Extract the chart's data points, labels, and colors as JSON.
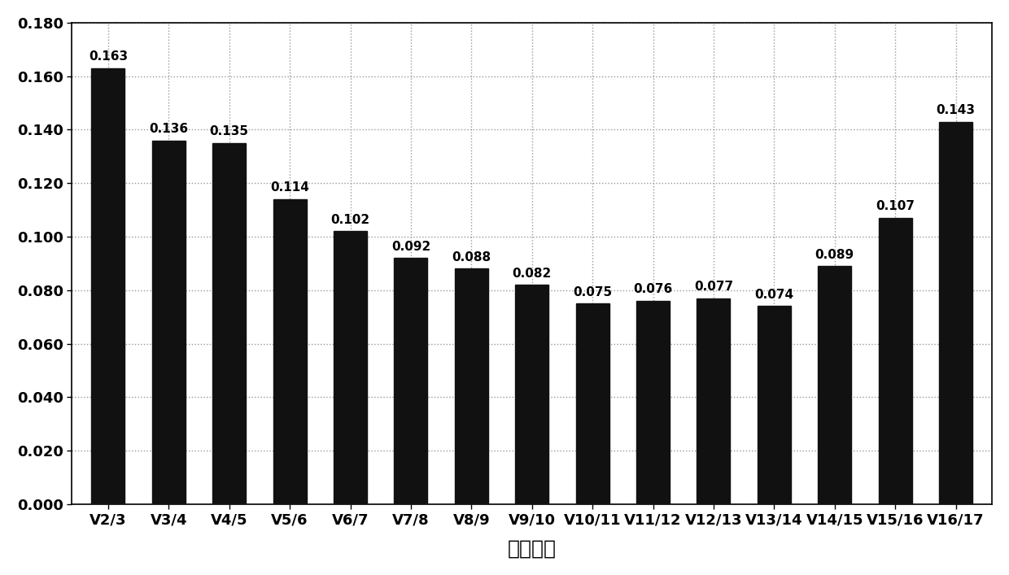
{
  "categories": [
    "V2/3",
    "V3/4",
    "V4/5",
    "V5/6",
    "V6/7",
    "V7/8",
    "V8/9",
    "V9/10",
    "V10/11",
    "V11/12",
    "V12/13",
    "V13/14",
    "V14/15",
    "V15/16",
    "V16/17"
  ],
  "values": [
    0.163,
    0.136,
    0.135,
    0.114,
    0.102,
    0.092,
    0.088,
    0.082,
    0.075,
    0.076,
    0.077,
    0.074,
    0.089,
    0.107,
    0.143
  ],
  "bar_color": "#111111",
  "xlabel": "成对变化",
  "ylabel": "",
  "ylim": [
    0.0,
    0.18
  ],
  "yticks": [
    0.0,
    0.02,
    0.04,
    0.06,
    0.08,
    0.1,
    0.12,
    0.14,
    0.16,
    0.18
  ],
  "background_color": "#ffffff",
  "grid_color": "#999999",
  "xlabel_fontsize": 18,
  "tick_fontsize": 13,
  "bar_label_fontsize": 11,
  "bar_width": 0.55,
  "figsize": [
    12.4,
    7.07
  ],
  "dpi": 100
}
